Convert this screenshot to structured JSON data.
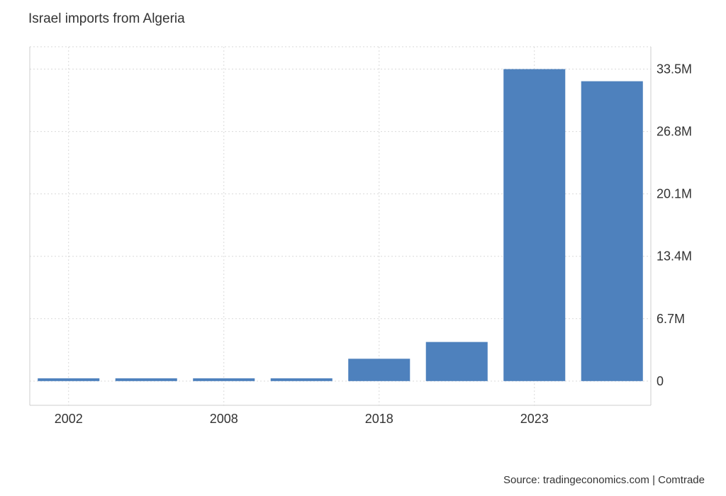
{
  "title": "Israel imports from Algeria",
  "source": "Source: tradingeconomics.com | Comtrade",
  "colors": {
    "bar": "#4e81bd",
    "grid": "#d9d9d9",
    "axis": "#cccccc",
    "text": "#333333"
  },
  "chart_data": {
    "type": "bar",
    "title": "Israel imports from Algeria",
    "xlabel": "",
    "ylabel": "",
    "ylim": [
      -2.6,
      35.9
    ],
    "grid": true,
    "y_axis_side": "right",
    "y_ticks": [
      0,
      6.7,
      13.4,
      20.1,
      26.8,
      33.5
    ],
    "y_tick_labels": [
      "0",
      "6.7M",
      "13.4M",
      "20.1M",
      "26.8M",
      "33.5M"
    ],
    "x_tick_labels": [
      {
        "label": "2002",
        "at_bar": 0
      },
      {
        "label": "2008",
        "at_bar": 2
      },
      {
        "label": "2018",
        "at_bar": 4
      },
      {
        "label": "2023",
        "at_bar": 6
      }
    ],
    "categories": [
      "2002",
      "",
      "2008",
      "",
      "2018",
      "",
      "2023",
      ""
    ],
    "values": [
      0.3,
      0.3,
      0.3,
      0.3,
      2.4,
      4.2,
      33.5,
      32.2
    ]
  }
}
